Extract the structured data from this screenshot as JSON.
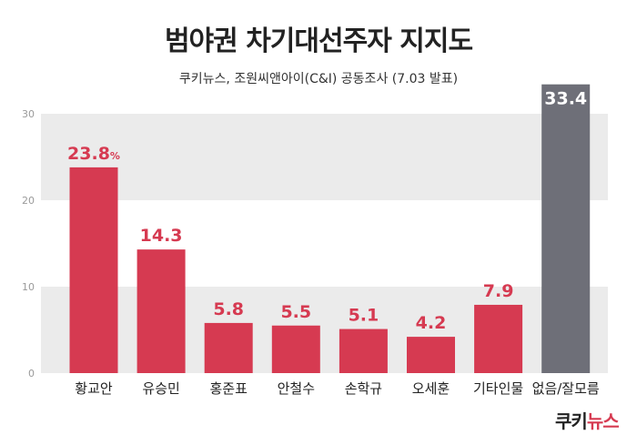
{
  "chart_data": {
    "type": "bar",
    "title": "범야권 차기대선주자 지지도",
    "subtitle": "쿠키뉴스, 조원씨앤아이(C&I) 공동조사 (7.03 발표)",
    "categories": [
      "황교안",
      "유승민",
      "홍준표",
      "안철수",
      "손학규",
      "오세훈",
      "기타인물",
      "없음/잘모름"
    ],
    "values": [
      23.8,
      14.3,
      5.8,
      5.5,
      5.1,
      4.2,
      7.9,
      33.4
    ],
    "value_labels": [
      "23.8",
      "14.3",
      "5.8",
      "5.5",
      "5.1",
      "4.2",
      "7.9",
      "33.4"
    ],
    "first_value_unit": "%",
    "ylim": [
      0,
      30
    ],
    "yticks": [
      0,
      10,
      20,
      30
    ],
    "bar_colors": [
      "#d63a51",
      "#d63a51",
      "#d63a51",
      "#d63a51",
      "#d63a51",
      "#d63a51",
      "#d63a51",
      "#6e6f78"
    ],
    "label_colors": [
      "#d63a51",
      "#d63a51",
      "#d63a51",
      "#d63a51",
      "#d63a51",
      "#d63a51",
      "#d63a51",
      "#ffffff"
    ],
    "band_color": "#ebebeb",
    "grid": true,
    "xlabel": "",
    "ylabel": ""
  },
  "logo": {
    "part1": "쿠키",
    "part2": "뉴스"
  }
}
